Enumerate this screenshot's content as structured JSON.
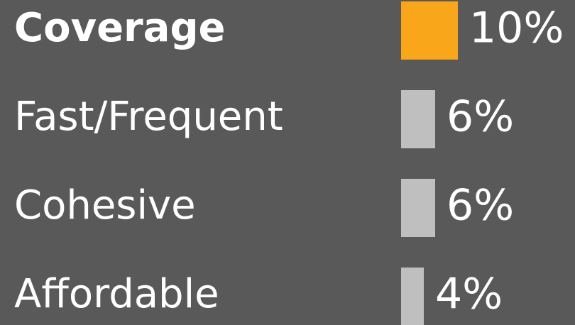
{
  "chart_data": {
    "type": "bar",
    "orientation": "horizontal",
    "categories": [
      "Coverage",
      "Fast/Frequent",
      "Cohesive",
      "Affordable"
    ],
    "values": [
      10,
      6,
      6,
      4
    ],
    "value_labels": [
      "10%",
      "6%",
      "6%",
      "4%"
    ],
    "colors": [
      "#f9a61a",
      "#bfbfbf",
      "#bfbfbf",
      "#bfbfbf"
    ]
  }
}
